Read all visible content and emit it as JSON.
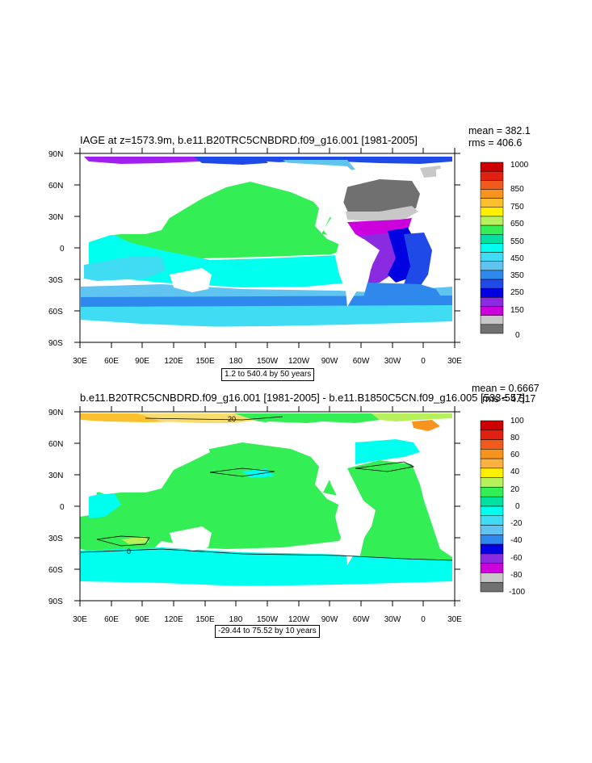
{
  "panel1": {
    "title": "IAGE at z=1573.9m, b.e11.B20TRC5CNBDRD.f09_g16.001 [1981-2005]",
    "mean": "mean = 382.1",
    "rms": "rms = 406.6",
    "contour_info": "1.2 to 540.4 by 50 years",
    "colorbar": {
      "labels": [
        "1000",
        "850",
        "750",
        "650",
        "550",
        "450",
        "350",
        "250",
        "150",
        "0"
      ],
      "colors": [
        "#cc0000",
        "#e02010",
        "#f05a1c",
        "#f7941d",
        "#fbc02d",
        "#fff000",
        "#b6f05a",
        "#33ee55",
        "#00e0a0",
        "#00ffee",
        "#40dcf4",
        "#60c4f0",
        "#2f88ec",
        "#1f4ae8",
        "#0000e0",
        "#8a2be2",
        "#cc00dd",
        "#c8c8c8",
        "#707070"
      ]
    }
  },
  "panel2": {
    "title": "b.e11.B20TRC5CNBDRD.f09_g16.001 [1981-2005] - b.e11.B1850C5CN.f09_g16.005 [533-557]",
    "mean": "mean = 0.6667",
    "rms": "rms = 4.517",
    "contour_info": "-29.44 to 75.52 by 10 years",
    "contour_labels": [
      "20",
      "0"
    ],
    "colorbar": {
      "labels": [
        "100",
        "80",
        "60",
        "40",
        "20",
        "0",
        "-20",
        "-40",
        "-60",
        "-80",
        "-100"
      ],
      "colors": [
        "#cc0000",
        "#e02010",
        "#f05a1c",
        "#f7941d",
        "#fbb040",
        "#fff000",
        "#b6f05a",
        "#33ee55",
        "#00e0a0",
        "#00ffee",
        "#40dcf4",
        "#60c4f0",
        "#2f88ec",
        "#0000e0",
        "#8a2be2",
        "#cc00dd",
        "#c8c8c8",
        "#707070"
      ]
    }
  },
  "axes": {
    "lat_labels": [
      "90N",
      "60N",
      "30N",
      "0",
      "30S",
      "60S",
      "90S"
    ],
    "lon_labels": [
      "30E",
      "60E",
      "90E",
      "120E",
      "150E",
      "180",
      "150W",
      "120W",
      "90W",
      "60W",
      "30W",
      "0",
      "30E"
    ]
  }
}
